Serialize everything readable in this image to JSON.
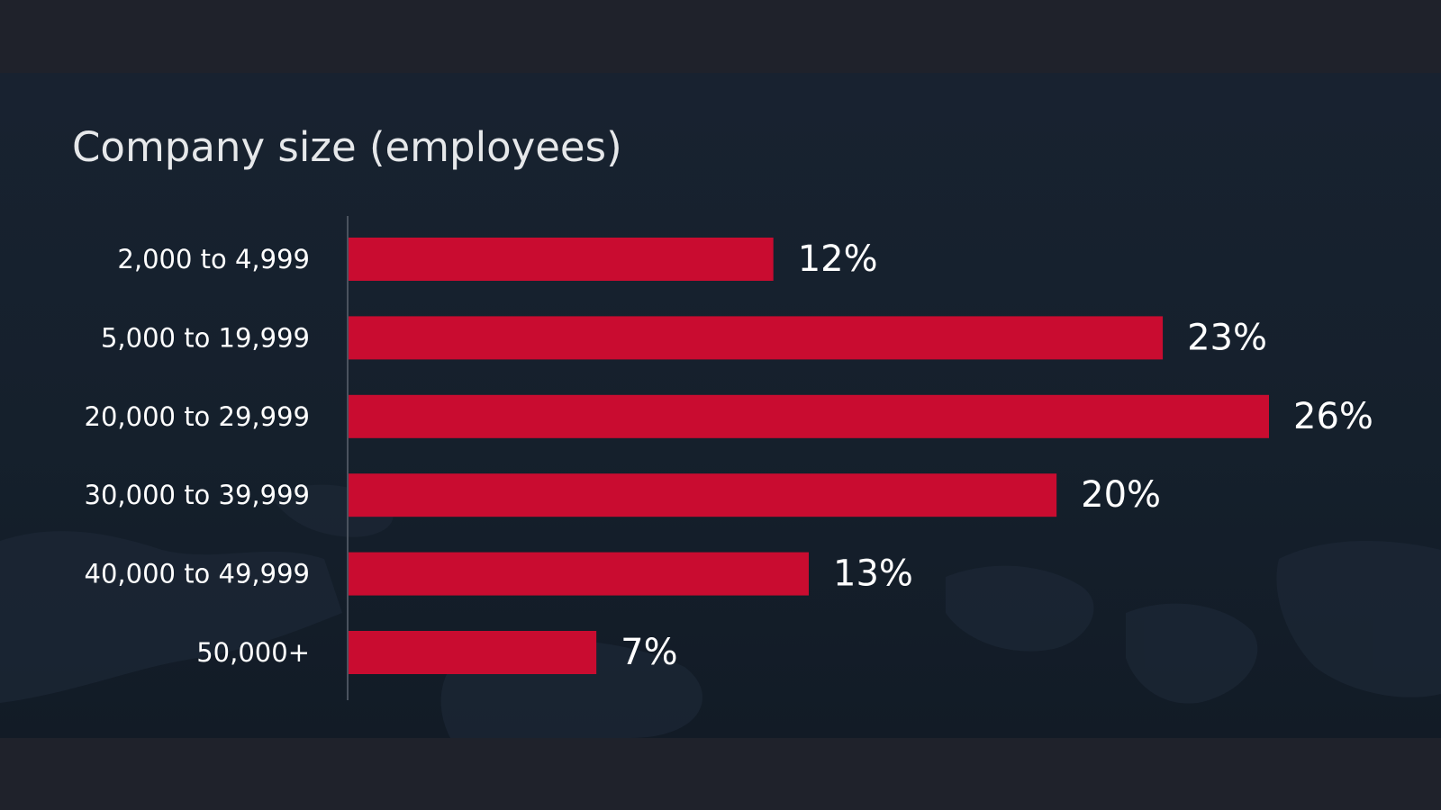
{
  "chart_data": {
    "type": "bar",
    "orientation": "horizontal",
    "title": "Company size (employees)",
    "categories": [
      "2,000 to 4,999",
      "5,000 to 19,999",
      "20,000 to 29,999",
      "30,000 to 39,999",
      "40,000 to 49,999",
      "50,000+"
    ],
    "values": [
      12,
      23,
      26,
      20,
      13,
      7
    ],
    "value_labels": [
      "12%",
      "23%",
      "26%",
      "20%",
      "13%",
      "7%"
    ],
    "xlabel": "",
    "ylabel": "",
    "xlim": [
      0,
      26
    ],
    "grid": false,
    "legend": "none",
    "colors": {
      "bar": "#c90c30",
      "axis_line": "#4a525e",
      "text": "#ffffff",
      "title": "#e6e8ea",
      "panel": "#16202c",
      "band": "#1f222b"
    }
  }
}
